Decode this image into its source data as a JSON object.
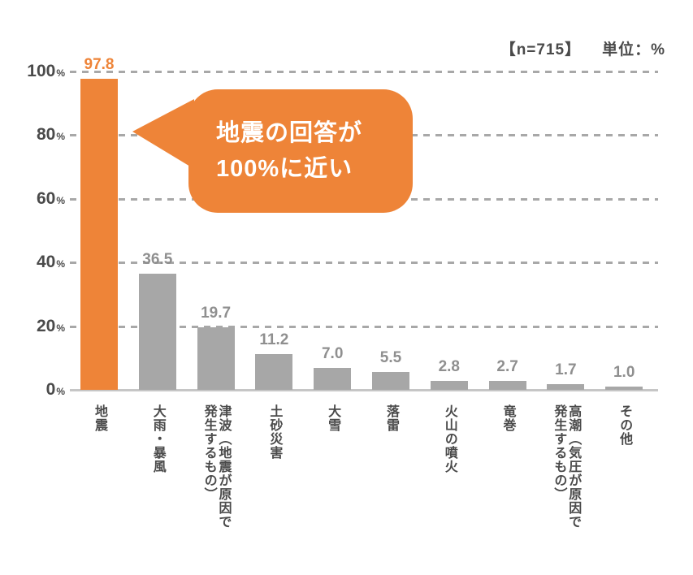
{
  "header": {
    "sample_size": "【n=715】",
    "unit_label": "単位：%"
  },
  "bubble": {
    "text": "地震の回答が\n100%に近い"
  },
  "chart_data": {
    "type": "bar",
    "title": "",
    "xlabel": "",
    "ylabel": "",
    "categories": [
      "地震",
      "大雨・暴風",
      "津波（地震が原因で\n発生するもの）",
      "土砂災害",
      "大雪",
      "落雷",
      "火山の噴火",
      "竜巻",
      "高潮（気圧が原因で\n発生するもの）",
      "その他"
    ],
    "values": [
      97.8,
      36.5,
      19.7,
      11.2,
      7.0,
      5.5,
      2.8,
      2.7,
      1.7,
      1.0
    ],
    "value_labels": [
      "97.8",
      "36.5",
      "19.7",
      "11.2",
      "7.0",
      "5.5",
      "2.8",
      "2.7",
      "1.7",
      "1.0"
    ],
    "ylim": [
      0,
      100
    ],
    "yticks": [
      0,
      20,
      40,
      60,
      80,
      100
    ],
    "ytick_suffix": "%",
    "grid": "horizontal-dashed",
    "legend": "none",
    "highlight_index": 0,
    "annotation": "地震の回答が100%に近い",
    "colors": {
      "highlight_bar": "#EE8438",
      "bar": "#A7A7A7",
      "value_label": "#8F8F8F",
      "highlight_value_label": "#EE8438",
      "axis_text": "#4A4A4A",
      "gridline": "#A8A8A8",
      "baseline": "#C6C6C6",
      "bubble_bg": "#EE8438",
      "bubble_text": "#FFFFFF"
    }
  }
}
